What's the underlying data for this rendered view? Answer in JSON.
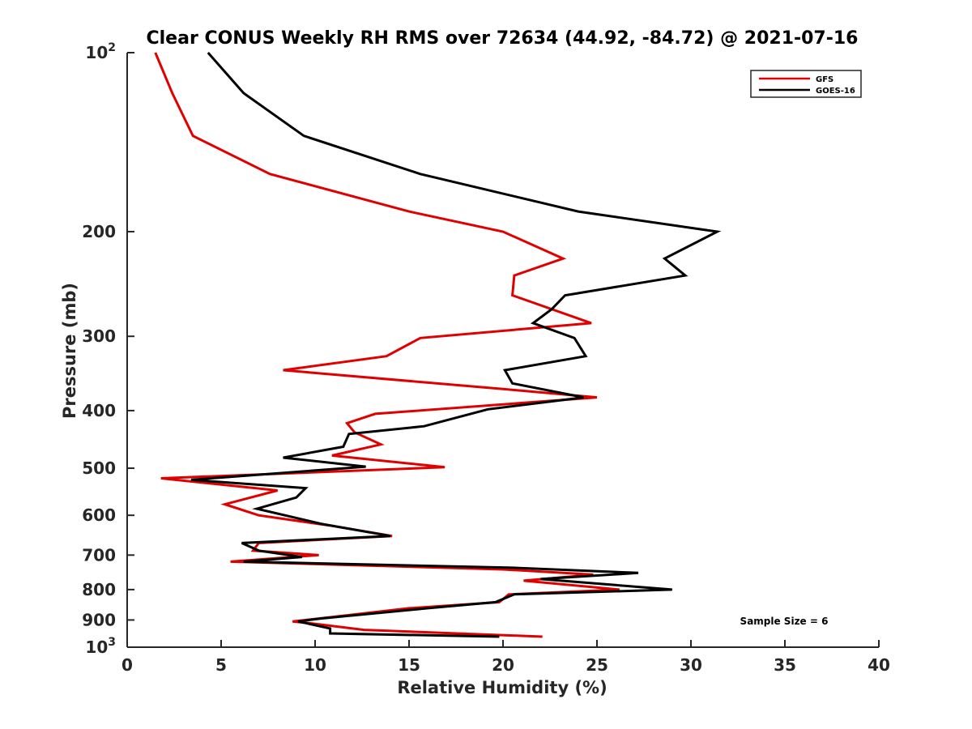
{
  "chart_data": {
    "type": "line",
    "title": "Clear CONUS Weekly RH RMS over 72634 (44.92, -84.72) @ 2021-07-16",
    "xlabel": "Relative Humidity (%)",
    "ylabel": "Pressure (mb)",
    "xlim": [
      0,
      40
    ],
    "ylim": [
      100,
      1000
    ],
    "y_scale": "log",
    "y_reversed": true,
    "x_ticks": [
      0,
      5,
      10,
      15,
      20,
      25,
      30,
      35,
      40
    ],
    "y_ticks": [
      {
        "value": 100,
        "label": "10",
        "sup": "2"
      },
      {
        "value": 200,
        "label": "200"
      },
      {
        "value": 300,
        "label": "300"
      },
      {
        "value": 400,
        "label": "400"
      },
      {
        "value": 500,
        "label": "500"
      },
      {
        "value": 600,
        "label": "600"
      },
      {
        "value": 700,
        "label": "700"
      },
      {
        "value": 800,
        "label": "800"
      },
      {
        "value": 900,
        "label": "900"
      },
      {
        "value": 1000,
        "label": "10",
        "sup": "3"
      }
    ],
    "legend": {
      "position": "top-right"
    },
    "annotation": "Sample Size = 6",
    "series": [
      {
        "name": "GFS",
        "color": "#e00000",
        "points": [
          [
            1.5,
            100
          ],
          [
            2.4,
            117
          ],
          [
            3.5,
            138
          ],
          [
            7.6,
            160
          ],
          [
            15.0,
            185
          ],
          [
            20.0,
            200
          ],
          [
            23.2,
            222
          ],
          [
            20.6,
            237
          ],
          [
            20.5,
            256
          ],
          [
            24.7,
            285
          ],
          [
            15.6,
            302
          ],
          [
            13.8,
            324
          ],
          [
            8.3,
            342
          ],
          [
            20.0,
            368
          ],
          [
            25.0,
            380
          ],
          [
            13.2,
            405
          ],
          [
            11.7,
            420
          ],
          [
            12.1,
            435
          ],
          [
            13.5,
            456
          ],
          [
            10.9,
            476
          ],
          [
            16.9,
            498
          ],
          [
            1.8,
            520
          ],
          [
            8.0,
            545
          ],
          [
            5.2,
            575
          ],
          [
            7.0,
            600
          ],
          [
            10.9,
            625
          ],
          [
            14.1,
            650
          ],
          [
            7.0,
            668
          ],
          [
            6.7,
            688
          ],
          [
            10.2,
            700
          ],
          [
            5.5,
            718
          ],
          [
            20.0,
            740
          ],
          [
            24.8,
            755
          ],
          [
            21.1,
            773
          ],
          [
            26.2,
            800
          ],
          [
            20.3,
            815
          ],
          [
            19.8,
            840
          ],
          [
            15.0,
            860
          ],
          [
            10.2,
            895
          ],
          [
            8.8,
            905
          ],
          [
            9.8,
            912
          ],
          [
            12.6,
            935
          ],
          [
            22.1,
            960
          ]
        ]
      },
      {
        "name": "GOES-16",
        "color": "#000000",
        "points": [
          [
            4.3,
            100
          ],
          [
            6.2,
            117
          ],
          [
            9.4,
            138
          ],
          [
            15.6,
            160
          ],
          [
            24.0,
            185
          ],
          [
            31.4,
            200
          ],
          [
            28.6,
            222
          ],
          [
            29.7,
            237
          ],
          [
            23.3,
            256
          ],
          [
            22.6,
            270
          ],
          [
            21.6,
            285
          ],
          [
            23.8,
            302
          ],
          [
            24.4,
            324
          ],
          [
            20.1,
            342
          ],
          [
            20.5,
            360
          ],
          [
            24.3,
            380
          ],
          [
            19.2,
            398
          ],
          [
            15.8,
            425
          ],
          [
            11.8,
            438
          ],
          [
            11.5,
            460
          ],
          [
            8.3,
            480
          ],
          [
            12.7,
            497
          ],
          [
            3.4,
            523
          ],
          [
            9.5,
            540
          ],
          [
            9.0,
            560
          ],
          [
            6.9,
            585
          ],
          [
            8.4,
            600
          ],
          [
            10.3,
            620
          ],
          [
            14.0,
            650
          ],
          [
            6.1,
            668
          ],
          [
            7.0,
            688
          ],
          [
            9.3,
            705
          ],
          [
            6.2,
            718
          ],
          [
            20.5,
            735
          ],
          [
            27.2,
            750
          ],
          [
            22.0,
            768
          ],
          [
            29.0,
            800
          ],
          [
            20.6,
            815
          ],
          [
            19.6,
            840
          ],
          [
            16.0,
            860
          ],
          [
            10.3,
            895
          ],
          [
            9.1,
            905
          ],
          [
            10.8,
            930
          ],
          [
            10.8,
            948
          ],
          [
            19.8,
            960
          ]
        ]
      }
    ]
  }
}
